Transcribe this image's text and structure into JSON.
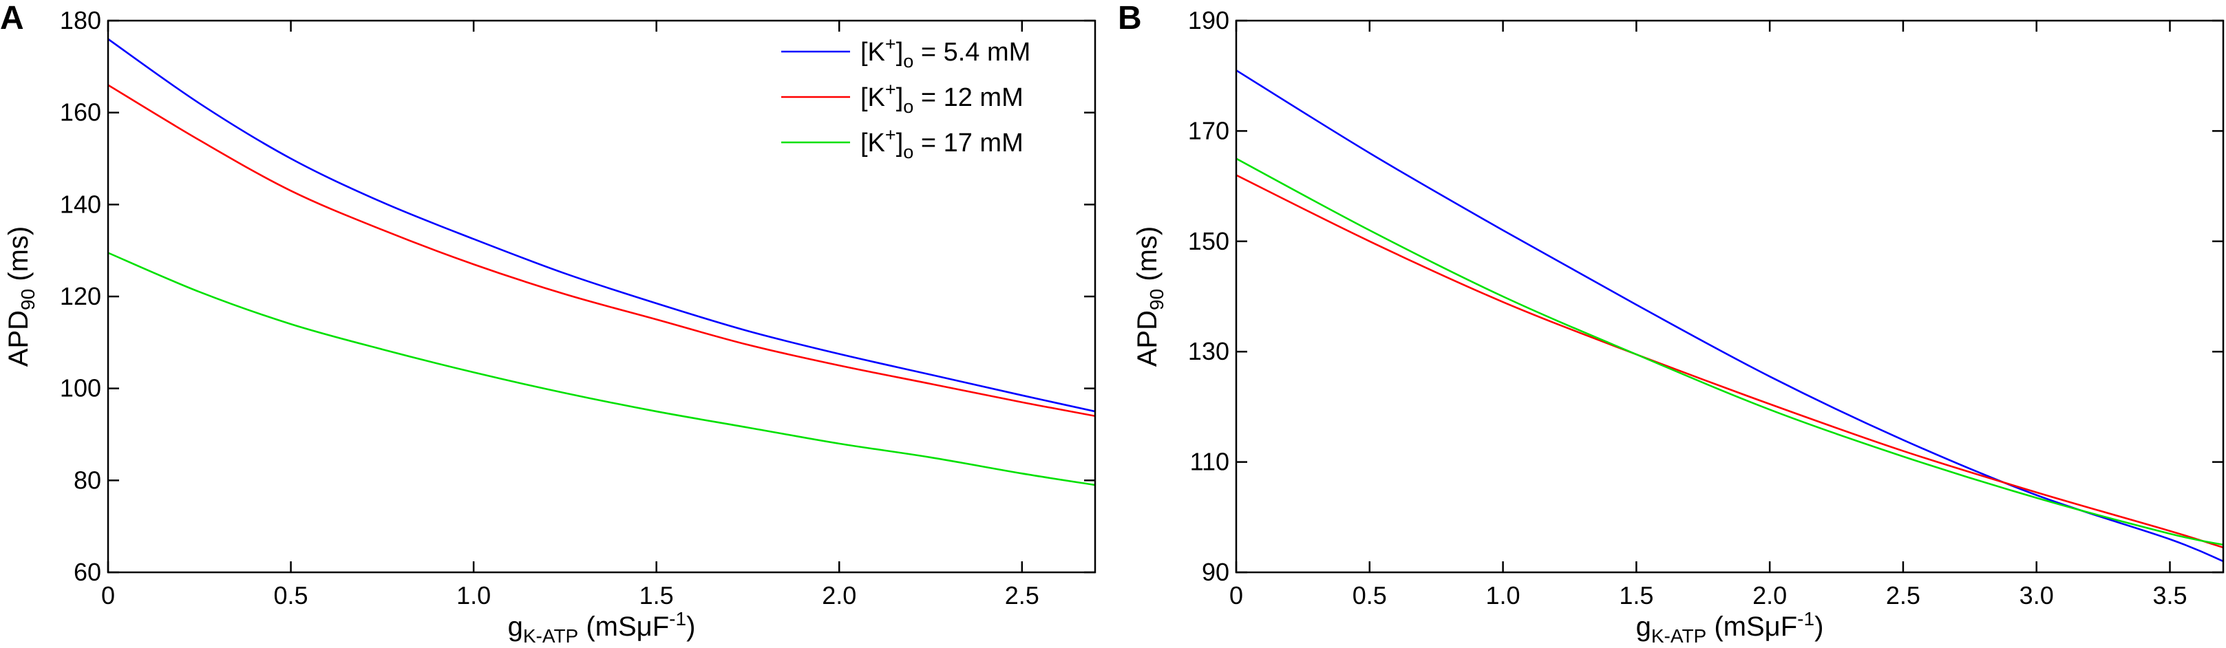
{
  "chart_data": [
    {
      "panel_label": "A",
      "type": "line",
      "xlabel": {
        "main": "g",
        "sub": "K-ATP",
        "unit_pre": " (mSμF",
        "unit_sup": "-1",
        "unit_post": ")"
      },
      "ylabel": {
        "main": "APD",
        "sub": "90",
        "unit": " (ms)"
      },
      "xlim": [
        0,
        2.7
      ],
      "ylim": [
        60,
        180
      ],
      "xticks": [
        0,
        0.5,
        1.0,
        1.5,
        2.0,
        2.5
      ],
      "xtick_labels": [
        "0",
        "0.5",
        "1.0",
        "1.5",
        "2.0",
        "2.5"
      ],
      "yticks": [
        60,
        80,
        100,
        120,
        140,
        160,
        180
      ],
      "ytick_labels": [
        "60",
        "80",
        "100",
        "120",
        "140",
        "160",
        "180"
      ],
      "grid": false,
      "legend": {
        "placement": "top-right",
        "entries": [
          {
            "pre": "[K",
            "sup": "+",
            "mid": "]",
            "sub": "o",
            "post": " = 5.4 mM"
          },
          {
            "pre": "[K",
            "sup": "+",
            "mid": "]",
            "sub": "o",
            "post": " = 12 mM"
          },
          {
            "pre": "[K",
            "sup": "+",
            "mid": "]",
            "sub": "o",
            "post": " = 17 mM"
          }
        ]
      },
      "series": [
        {
          "color": "#0000ff",
          "x": [
            0,
            0.25,
            0.5,
            0.75,
            1.0,
            1.25,
            1.5,
            1.75,
            2.0,
            2.25,
            2.5,
            2.7
          ],
          "y": [
            176,
            162,
            150,
            140.5,
            132.5,
            125,
            118.5,
            112.5,
            107.5,
            103,
            98.5,
            95
          ]
        },
        {
          "color": "#ff0000",
          "x": [
            0,
            0.25,
            0.5,
            0.75,
            1.0,
            1.25,
            1.5,
            1.75,
            2.0,
            2.25,
            2.5,
            2.7
          ],
          "y": [
            166,
            154,
            143,
            134.5,
            127,
            120.5,
            115,
            109.5,
            105,
            101,
            97,
            94
          ]
        },
        {
          "color": "#00e000",
          "x": [
            0,
            0.25,
            0.5,
            0.75,
            1.0,
            1.25,
            1.5,
            1.75,
            2.0,
            2.25,
            2.5,
            2.7
          ],
          "y": [
            129.5,
            121,
            114,
            108.5,
            103.5,
            99,
            95,
            91.5,
            88,
            85,
            81.5,
            79
          ]
        }
      ]
    },
    {
      "panel_label": "B",
      "type": "line",
      "xlabel": {
        "main": "g",
        "sub": "K-ATP",
        "unit_pre": " (mSμF",
        "unit_sup": "-1",
        "unit_post": ")"
      },
      "ylabel": {
        "main": "APD",
        "sub": "90",
        "unit": " (ms)"
      },
      "xlim": [
        0,
        3.7
      ],
      "ylim": [
        90,
        190
      ],
      "xticks": [
        0,
        0.5,
        1.0,
        1.5,
        2.0,
        2.5,
        3.0,
        3.5
      ],
      "xtick_labels": [
        "0",
        "0.5",
        "1.0",
        "1.5",
        "2.0",
        "2.5",
        "3.0",
        "3.5"
      ],
      "yticks": [
        90,
        110,
        130,
        150,
        170,
        190
      ],
      "ytick_labels": [
        "90",
        "110",
        "130",
        "150",
        "170",
        "190"
      ],
      "grid": false,
      "series": [
        {
          "color": "#0000ff",
          "x": [
            0,
            0.5,
            1.0,
            1.5,
            2.0,
            2.5,
            3.0,
            3.5,
            3.7
          ],
          "y": [
            181,
            166,
            152,
            138.5,
            125.5,
            114,
            104,
            96,
            92
          ]
        },
        {
          "color": "#ff0000",
          "x": [
            0,
            0.5,
            1.0,
            1.5,
            2.0,
            2.5,
            3.0,
            3.5,
            3.7
          ],
          "y": [
            162,
            150,
            139,
            129.5,
            120.5,
            112,
            104.5,
            97.5,
            94.5
          ]
        },
        {
          "color": "#00e000",
          "x": [
            0,
            0.5,
            1.0,
            1.5,
            2.0,
            2.5,
            3.0,
            3.5,
            3.7
          ],
          "y": [
            165,
            152,
            140,
            129.5,
            119.5,
            111,
            103.5,
            97,
            95
          ]
        }
      ]
    }
  ]
}
